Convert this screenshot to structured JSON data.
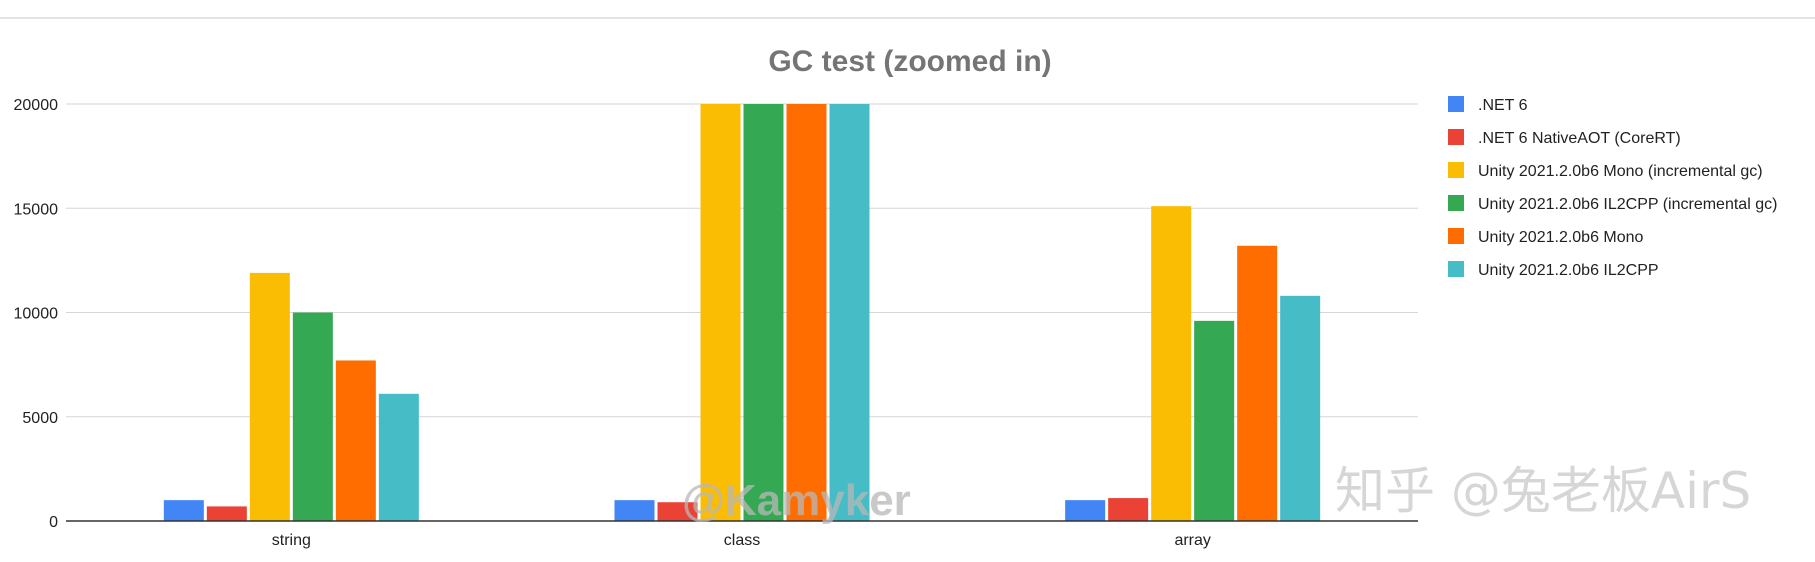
{
  "chart_data": {
    "type": "bar",
    "title": "GC test (zoomed in)",
    "xlabel": "",
    "ylabel": "",
    "ylim": [
      0,
      20000
    ],
    "yticks": [
      0,
      5000,
      10000,
      15000,
      20000
    ],
    "grid": true,
    "legend": "right",
    "categories": [
      "string",
      "class",
      "array"
    ],
    "series": [
      {
        "name": ".NET 6",
        "color": "#4285f4",
        "values": [
          1000,
          1000,
          1000
        ]
      },
      {
        "name": ".NET 6 NativeAOT (CoreRT)",
        "color": "#ea4335",
        "values": [
          700,
          900,
          1100
        ]
      },
      {
        "name": "Unity 2021.2.0b6 Mono (incremental gc)",
        "color": "#fbbc04",
        "values": [
          11900,
          20000,
          15100
        ]
      },
      {
        "name": "Unity 2021.2.0b6 IL2CPP (incremental gc)",
        "color": "#34a853",
        "values": [
          10000,
          20000,
          9600
        ]
      },
      {
        "name": "Unity 2021.2.0b6 Mono",
        "color": "#ff6d01",
        "values": [
          7700,
          20000,
          13200
        ]
      },
      {
        "name": "Unity 2021.2.0b6 IL2CPP",
        "color": "#46bdc6",
        "values": [
          6100,
          20000,
          10800
        ]
      }
    ]
  },
  "watermarks": [
    "@Kamyker",
    "知乎 @兔老板AirS"
  ]
}
